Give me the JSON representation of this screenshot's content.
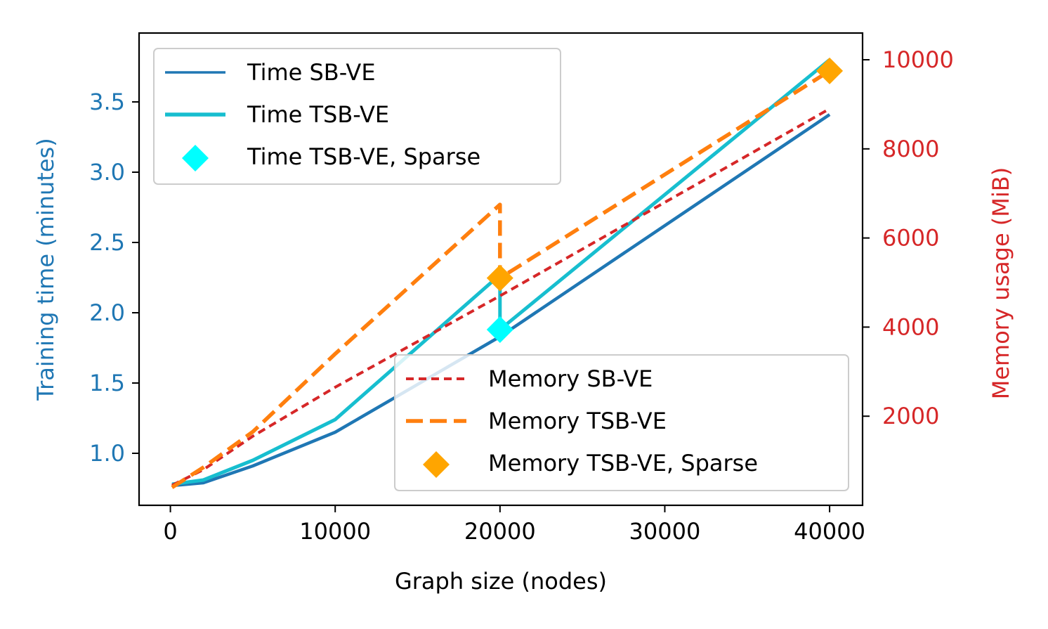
{
  "chart_data": {
    "type": "line",
    "title": "",
    "xlabel": "Graph size (nodes)",
    "ylabel_left": "Training time (minutes)",
    "ylabel_right": "Memory usage (MiB)",
    "xlim": [
      -1900,
      42000
    ],
    "ylim_left": [
      0.63,
      3.99
    ],
    "ylim_right": [
      0,
      10600
    ],
    "x_ticks": [
      0,
      10000,
      20000,
      30000,
      40000
    ],
    "y_left_ticks": [
      1.0,
      1.5,
      2.0,
      2.5,
      3.0,
      3.5
    ],
    "y_right_ticks": [
      2000,
      4000,
      6000,
      8000,
      10000
    ],
    "x_tick_labels": [
      "0",
      "10000",
      "20000",
      "30000",
      "40000"
    ],
    "y_left_tick_labels": [
      "1.0",
      "1.5",
      "2.0",
      "2.5",
      "3.0",
      "3.5"
    ],
    "y_right_tick_labels": [
      "2000",
      "4000",
      "6000",
      "8000",
      "10000"
    ],
    "colors": {
      "left_axis": "#1f77b4",
      "right_axis": "#d62728"
    },
    "series": [
      {
        "name": "Time SB-VE",
        "axis": "left",
        "kind": "line",
        "style": "solid",
        "color": "#1f77b4",
        "x": [
          100,
          2000,
          5000,
          10000,
          20000,
          40000
        ],
        "y": [
          0.77,
          0.79,
          0.91,
          1.15,
          1.83,
          3.41
        ]
      },
      {
        "name": "Time TSB-VE",
        "axis": "left",
        "kind": "line",
        "style": "solid",
        "color": "#17becf",
        "x": [
          100,
          2000,
          5000,
          10000,
          20000,
          20000,
          40000
        ],
        "y": [
          0.78,
          0.81,
          0.95,
          1.24,
          2.27,
          1.88,
          3.8
        ]
      },
      {
        "name": "Time TSB-VE, Sparse",
        "axis": "left",
        "kind": "marker",
        "color": "#00ffff",
        "x": [
          20000
        ],
        "y": [
          1.88
        ]
      },
      {
        "name": "Memory SB-VE",
        "axis": "right",
        "kind": "line",
        "style": "dotted",
        "color": "#d62728",
        "x": [
          100,
          2000,
          5000,
          10000,
          20000,
          40000
        ],
        "y": [
          450,
          800,
          1550,
          2650,
          4700,
          8900
        ]
      },
      {
        "name": "Memory TSB-VE",
        "axis": "right",
        "kind": "line",
        "style": "dashed",
        "color": "#ff7f0e",
        "x": [
          100,
          2000,
          5000,
          10000,
          20000,
          20000,
          40000
        ],
        "y": [
          400,
          850,
          1650,
          3400,
          6750,
          5100,
          9750
        ]
      },
      {
        "name": "Memory TSB-VE, Sparse",
        "axis": "right",
        "kind": "marker",
        "color": "#ffa500",
        "x": [
          20000,
          40000
        ],
        "y": [
          5100,
          9750
        ]
      }
    ],
    "legends": [
      {
        "location": "upper-left",
        "entries": [
          "Time SB-VE",
          "Time TSB-VE",
          "Time TSB-VE, Sparse"
        ]
      },
      {
        "location": "lower-right",
        "entries": [
          "Memory SB-VE",
          "Memory TSB-VE",
          "Memory TSB-VE, Sparse"
        ]
      }
    ],
    "grid": false
  }
}
